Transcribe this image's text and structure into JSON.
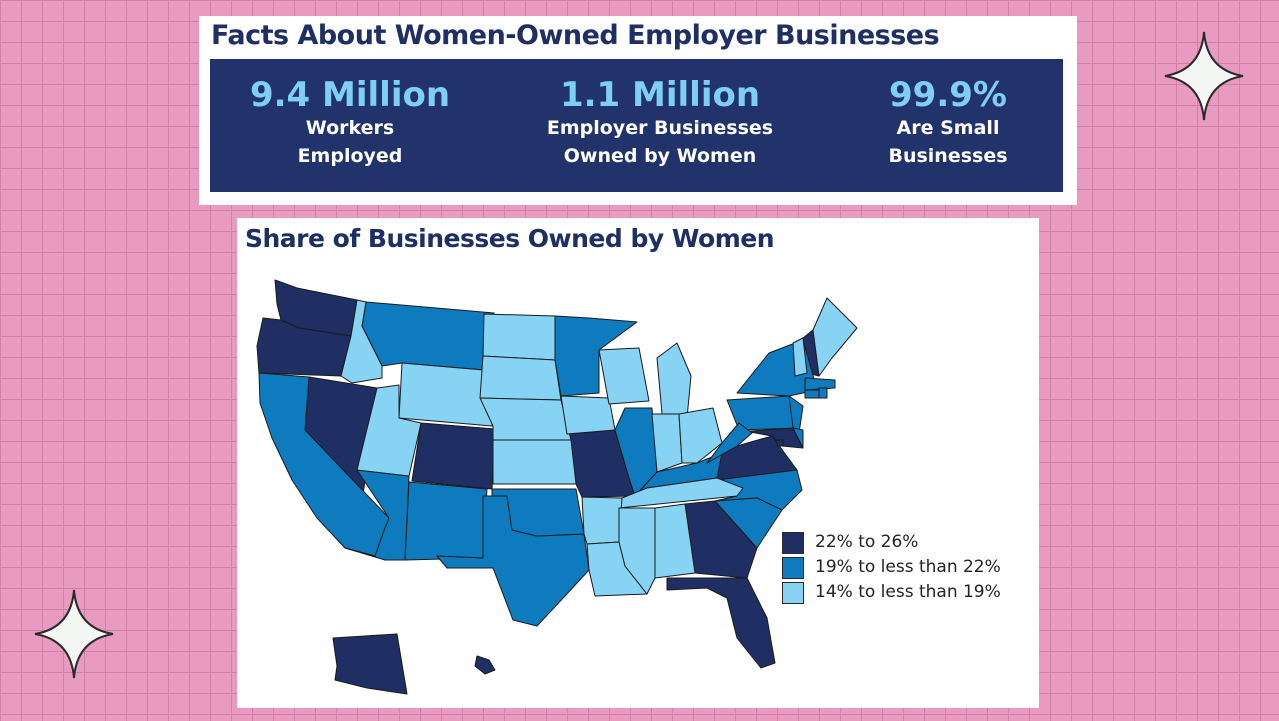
{
  "facts": {
    "title": "Facts About Women-Owned Employer Businesses",
    "stats": [
      {
        "value": "9.4 Million",
        "label_line1": "Workers",
        "label_line2": "Employed"
      },
      {
        "value": "1.1 Million",
        "label_line1": "Employer Businesses",
        "label_line2": "Owned by Women"
      },
      {
        "value": "99.9%",
        "label_line1": "Are Small",
        "label_line2": "Businesses"
      }
    ]
  },
  "map": {
    "title": "Share of Businesses Owned by Women",
    "legend": [
      {
        "label": "22% to 26%",
        "color": "#1f2f63"
      },
      {
        "label": "19% to less than 22%",
        "color": "#0f7bbf"
      },
      {
        "label": "14% to less than 19%",
        "color": "#86d3f3"
      }
    ]
  },
  "chart_data": {
    "type": "choropleth",
    "title": "Share of Businesses Owned by Women",
    "categories": [
      "22% to 26%",
      "19% to less than 22%",
      "14% to less than 19%"
    ],
    "states": {
      "WA": 0,
      "OR": 0,
      "NV": 0,
      "CO": 0,
      "MO": 0,
      "VA": 0,
      "MD": 0,
      "GA": 0,
      "FL": 0,
      "AK": 0,
      "HI": 0,
      "NH": 0,
      "DC": 0,
      "CA": 1,
      "MT": 1,
      "AZ": 1,
      "NM": 1,
      "TX": 1,
      "OK": 1,
      "MN": 1,
      "IL": 1,
      "NY": 1,
      "PA": 1,
      "NJ": 1,
      "KY": 1,
      "WV": 1,
      "NC": 1,
      "SC": 1,
      "DE": 1,
      "MA": 1,
      "CT": 1,
      "RI": 1,
      "ID": 2,
      "WY": 2,
      "UT": 2,
      "ND": 2,
      "SD": 2,
      "NE": 2,
      "KS": 2,
      "IA": 2,
      "WI": 2,
      "MI": 2,
      "IN": 2,
      "OH": 2,
      "TN": 2,
      "AR": 2,
      "LA": 2,
      "MS": 2,
      "AL": 2,
      "ME": 2,
      "VT": 2
    },
    "colors": [
      "#1f2f63",
      "#0f7bbf",
      "#86d3f3"
    ]
  }
}
